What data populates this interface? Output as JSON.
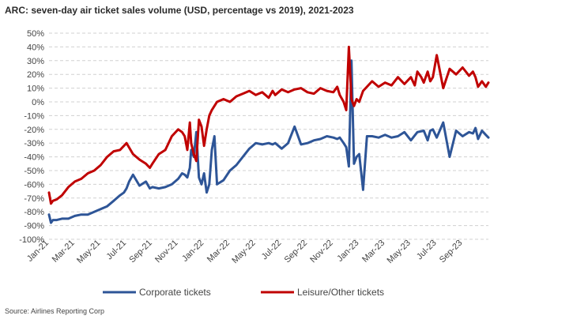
{
  "title": "ARC: seven-day air ticket sales volume (USD, percentage vs 2019), 2021-2023",
  "source": "Source: Airlines Reporting Corp",
  "chart_data": {
    "type": "line",
    "ylim": [
      -100,
      50
    ],
    "yticks": [
      "50%",
      "40%",
      "30%",
      "20%",
      "10%",
      "0%",
      "-10%",
      "-20%",
      "-30%",
      "-40%",
      "-50%",
      "-60%",
      "-70%",
      "-80%",
      "-90%",
      "-100%"
    ],
    "xticks": [
      "Jan-21",
      "Mar-21",
      "May-21",
      "Jul-21",
      "Sep-21",
      "Nov-21",
      "Jan-22",
      "Mar-22",
      "May-22",
      "Jul-22",
      "Sep-22",
      "Nov-22",
      "Jan-23",
      "Mar-23",
      "May-23",
      "Jul-23",
      "Sep-23"
    ],
    "grid": "horizontal dashed",
    "legend": "bottom",
    "x_unit": "months from Jan-21",
    "series": [
      {
        "name": "Corporate tickets",
        "color": "#2e5597",
        "x": [
          0,
          0.15,
          0.3,
          0.6,
          1.0,
          1.5,
          2.0,
          2.5,
          3.0,
          3.5,
          4.0,
          4.5,
          5.0,
          5.5,
          5.8,
          6.0,
          6.2,
          6.5,
          7.0,
          7.5,
          7.8,
          8.0,
          8.5,
          9.0,
          9.5,
          10.0,
          10.3,
          10.5,
          10.7,
          10.9,
          11.0,
          11.2,
          11.4,
          11.6,
          11.8,
          12.0,
          12.2,
          12.4,
          12.6,
          12.8,
          13.0,
          13.5,
          14.0,
          14.5,
          15.0,
          15.5,
          16.0,
          16.5,
          17.0,
          17.3,
          17.5,
          18.0,
          18.5,
          19.0,
          19.5,
          20.0,
          20.5,
          21.0,
          21.5,
          22.0,
          22.3,
          22.5,
          22.8,
          23.0,
          23.2,
          23.4,
          23.6,
          23.8,
          24.0,
          24.3,
          24.6,
          25.0,
          25.5,
          26.0,
          26.5,
          27.0,
          27.5,
          28.0,
          28.5,
          29.0,
          29.3,
          29.5,
          29.7,
          30.0,
          30.5,
          31.0,
          31.5,
          32.0,
          32.5,
          32.8,
          33.0,
          33.2,
          33.5,
          33.8,
          34.0
        ],
        "values": [
          -82,
          -88,
          -86,
          -86,
          -85,
          -85,
          -83,
          -82,
          -82,
          -80,
          -78,
          -76,
          -72,
          -68,
          -66,
          -63,
          -58,
          -53,
          -61,
          -58,
          -63,
          -62,
          -63,
          -62,
          -60,
          -56,
          -52,
          -53,
          -55,
          -48,
          -35,
          -40,
          -22,
          -55,
          -60,
          -52,
          -66,
          -60,
          -35,
          -25,
          -60,
          -57,
          -50,
          -46,
          -40,
          -34,
          -30,
          -31,
          -30,
          -31,
          -30,
          -34,
          -30,
          -18,
          -31,
          -30,
          -28,
          -27,
          -25,
          -26,
          -27,
          -26,
          -30,
          -33,
          -47,
          30,
          -45,
          -40,
          -38,
          -64,
          -25,
          -25,
          -26,
          -24,
          -26,
          -25,
          -22,
          -28,
          -22,
          -21,
          -28,
          -21,
          -20,
          -26,
          -15,
          -40,
          -21,
          -25,
          -22,
          -23,
          -19,
          -27,
          -21,
          -24,
          -26
        ]
      },
      {
        "name": "Leisure/Other tickets",
        "color": "#c00000",
        "x": [
          0,
          0.15,
          0.3,
          0.6,
          1.0,
          1.5,
          2.0,
          2.5,
          3.0,
          3.5,
          4.0,
          4.5,
          5.0,
          5.5,
          6.0,
          6.5,
          7.0,
          7.5,
          7.8,
          8.0,
          8.5,
          9.0,
          9.5,
          10.0,
          10.3,
          10.5,
          10.7,
          10.9,
          11.0,
          11.2,
          11.4,
          11.6,
          11.8,
          12.0,
          12.2,
          12.4,
          12.6,
          12.8,
          13.0,
          13.5,
          14.0,
          14.5,
          15.0,
          15.5,
          16.0,
          16.5,
          17.0,
          17.3,
          17.5,
          18.0,
          18.5,
          19.0,
          19.5,
          20.0,
          20.5,
          21.0,
          21.5,
          22.0,
          22.3,
          22.5,
          22.8,
          23.0,
          23.2,
          23.4,
          23.6,
          23.8,
          24.0,
          24.3,
          24.6,
          25.0,
          25.5,
          26.0,
          26.5,
          27.0,
          27.5,
          28.0,
          28.3,
          28.5,
          28.8,
          29.0,
          29.3,
          29.5,
          29.7,
          30.0,
          30.5,
          31.0,
          31.5,
          32.0,
          32.5,
          32.8,
          33.0,
          33.2,
          33.5,
          33.8,
          34.0
        ],
        "values": [
          -66,
          -74,
          -72,
          -71,
          -68,
          -62,
          -58,
          -56,
          -52,
          -50,
          -46,
          -40,
          -36,
          -35,
          -30,
          -38,
          -42,
          -45,
          -48,
          -45,
          -38,
          -35,
          -25,
          -20,
          -22,
          -25,
          -35,
          -15,
          -30,
          -38,
          -43,
          -13,
          -18,
          -32,
          -20,
          -10,
          -6,
          -3,
          0,
          2,
          0,
          4,
          6,
          8,
          5,
          7,
          3,
          8,
          5,
          9,
          7,
          9,
          10,
          7,
          6,
          10,
          8,
          7,
          11,
          5,
          0,
          -6,
          40,
          2,
          -3,
          2,
          0,
          8,
          11,
          15,
          11,
          14,
          12,
          18,
          13,
          18,
          12,
          22,
          18,
          14,
          22,
          15,
          18,
          34,
          10,
          24,
          20,
          25,
          19,
          22,
          18,
          11,
          15,
          11,
          14
        ]
      }
    ]
  }
}
